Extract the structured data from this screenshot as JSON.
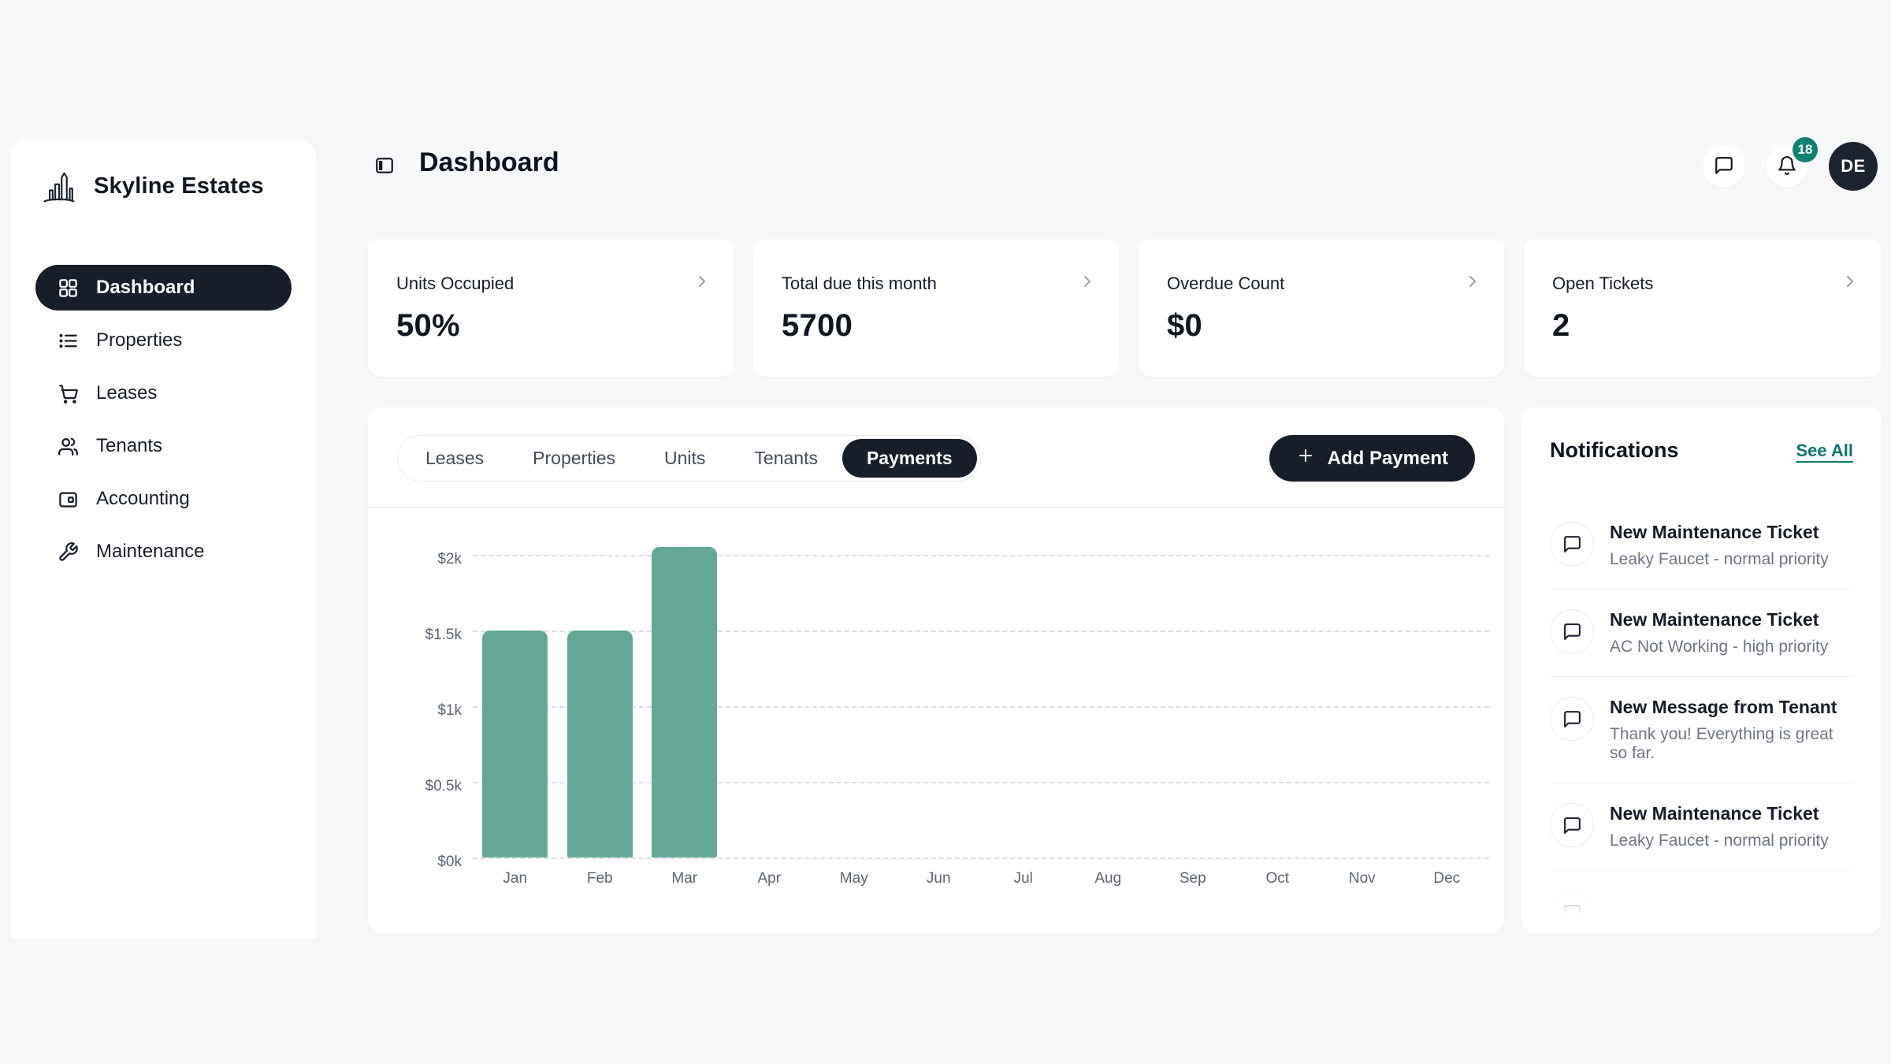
{
  "brand": {
    "name": "Skyline Estates"
  },
  "sidebar": {
    "items": [
      {
        "label": "Dashboard",
        "icon": "grid-icon",
        "active": true
      },
      {
        "label": "Properties",
        "icon": "list-icon",
        "active": false
      },
      {
        "label": "Leases",
        "icon": "cart-icon",
        "active": false
      },
      {
        "label": "Tenants",
        "icon": "users-icon",
        "active": false
      },
      {
        "label": "Accounting",
        "icon": "wallet-icon",
        "active": false
      },
      {
        "label": "Maintenance",
        "icon": "wrench-icon",
        "active": false
      }
    ]
  },
  "header": {
    "title": "Dashboard",
    "notification_badge": "18",
    "avatar_initials": "DE"
  },
  "stats": [
    {
      "label": "Units Occupied",
      "value": "50%"
    },
    {
      "label": "Total due this month",
      "value": "5700"
    },
    {
      "label": "Overdue Count",
      "value": "$0"
    },
    {
      "label": "Open Tickets",
      "value": "2"
    }
  ],
  "tabs": {
    "items": [
      "Leases",
      "Properties",
      "Units",
      "Tenants",
      "Payments"
    ],
    "active": "Payments"
  },
  "toolbar": {
    "add_payment_label": "Add Payment"
  },
  "chart_data": {
    "type": "bar",
    "title": "",
    "xlabel": "",
    "ylabel": "",
    "categories": [
      "Jan",
      "Feb",
      "Mar",
      "Apr",
      "May",
      "Jun",
      "Jul",
      "Aug",
      "Sep",
      "Oct",
      "Nov",
      "Dec"
    ],
    "values": [
      1500,
      1500,
      2050,
      0,
      0,
      0,
      0,
      0,
      0,
      0,
      0,
      0
    ],
    "ylim": [
      0,
      2050
    ],
    "y_ticks": [
      {
        "value": 0,
        "label": "$0k"
      },
      {
        "value": 500,
        "label": "$0.5k"
      },
      {
        "value": 1000,
        "label": "$1k"
      },
      {
        "value": 1500,
        "label": "$1.5k"
      },
      {
        "value": 2000,
        "label": "$2k"
      }
    ],
    "grid": "horizontal-dashed",
    "legend": false,
    "bar_color": "#64a796"
  },
  "notifications": {
    "title": "Notifications",
    "see_all_label": "See All",
    "items": [
      {
        "title": "New Maintenance Ticket",
        "subtitle": "Leaky Faucet - normal priority"
      },
      {
        "title": "New Maintenance Ticket",
        "subtitle": "AC Not Working - high priority"
      },
      {
        "title": "New Message from Tenant",
        "subtitle": "Thank you! Everything is great so far."
      },
      {
        "title": "New Maintenance Ticket",
        "subtitle": "Leaky Faucet - normal priority"
      }
    ]
  },
  "colors": {
    "page_bg": "#f7f8fa",
    "dark_navy": "#171d29",
    "bar_teal": "#64a796",
    "badge_teal": "#0e8170",
    "link_teal": "#0f766e",
    "muted_text": "#5b6472"
  }
}
